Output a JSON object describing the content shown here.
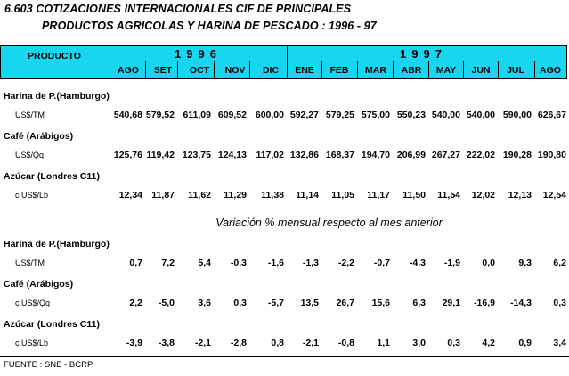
{
  "title_line1": "6.603  COTIZACIONES INTERNACIONALES CIF DE PRINCIPALES",
  "title_line2": "PRODUCTOS AGRICOLAS Y HARINA DE PESCADO : 1996 - 97",
  "header": {
    "product": "PRODUCTO",
    "year1": "1996",
    "year2": "1997",
    "months": [
      "AGO",
      "SET",
      "OCT",
      "NOV",
      "DIC",
      "ENE",
      "FEB",
      "MAR",
      "ABR",
      "MAY",
      "JUN",
      "JUL",
      "AGO"
    ]
  },
  "prices": [
    {
      "label": "Harina de P.(Hamburgo)",
      "unit": "US$/TM",
      "values": [
        "540,68",
        "579,52",
        "611,09",
        "609,52",
        "600,00",
        "592,27",
        "579,25",
        "575,00",
        "550,23",
        "540,00",
        "540,00",
        "590,00",
        "626,67"
      ]
    },
    {
      "label": "Café    (Arábigos)",
      "unit": "US$/Qq",
      "values": [
        "125,76",
        "119,42",
        "123,75",
        "124,13",
        "117,02",
        "132,86",
        "168,37",
        "194,70",
        "206,99",
        "267,27",
        "222,02",
        "190,28",
        "190,80"
      ]
    },
    {
      "label": "Azúcar  (Londres C11)",
      "unit": "c.US$/Lb",
      "values": [
        "12,34",
        "11,87",
        "11,62",
        "11,29",
        "11,38",
        "11,14",
        "11,05",
        "11,17",
        "11,50",
        "11,54",
        "12,02",
        "12,13",
        "12,54"
      ]
    }
  ],
  "variation_title": "Variación % mensual respecto al mes anterior",
  "variations": [
    {
      "label": "Harina de P.(Hamburgo)",
      "unit": "US$/TM",
      "values": [
        "0,7",
        "7,2",
        "5,4",
        "-0,3",
        "-1,6",
        "-1,3",
        "-2,2",
        "-0,7",
        "-4,3",
        "-1,9",
        "0,0",
        "9,3",
        "6,2"
      ]
    },
    {
      "label": "Café    (Arábigos)",
      "unit": "c.US$/Qq",
      "values": [
        "2,2",
        "-5,0",
        "3,6",
        "0,3",
        "-5,7",
        "13,5",
        "26,7",
        "15,6",
        "6,3",
        "29,1",
        "-16,9",
        "-14,3",
        "0,3"
      ]
    },
    {
      "label": "Azúcar  (Londres C11)",
      "unit": "c.US$/Lb",
      "values": [
        "-3,9",
        "-3,8",
        "-2,1",
        "-2,8",
        "0,8",
        "-2,1",
        "-0,8",
        "1,1",
        "3,0",
        "0,3",
        "4,2",
        "0,9",
        "3,4"
      ]
    }
  ],
  "footer": "FUENTE : SNE - BCRP"
}
